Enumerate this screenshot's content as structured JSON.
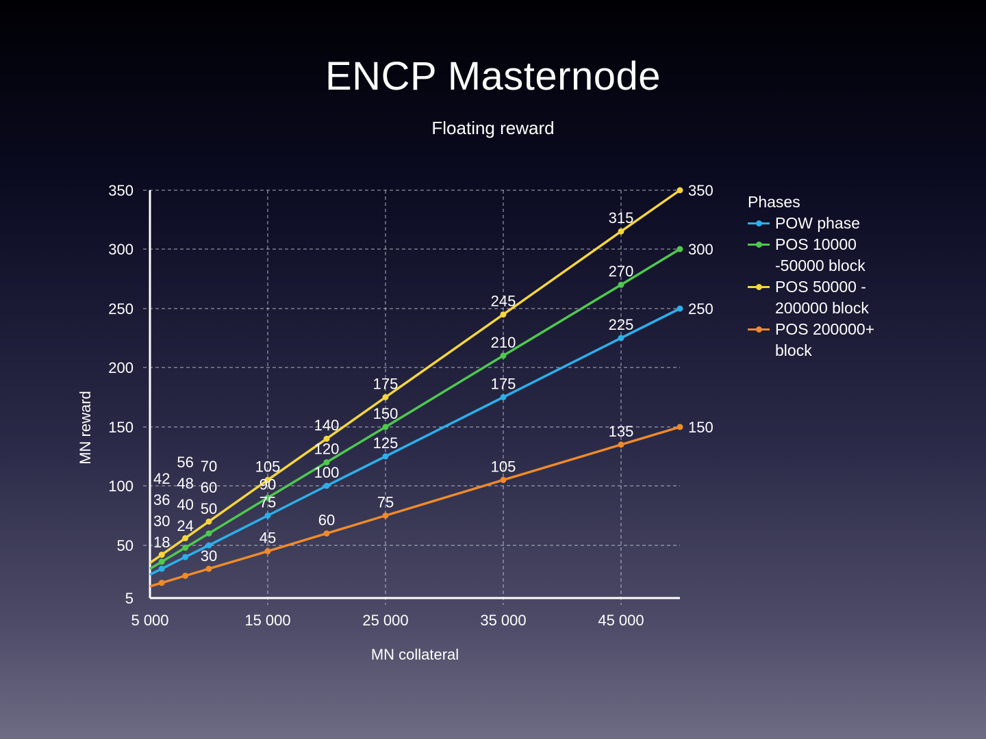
{
  "chart_data": {
    "type": "line",
    "title": "ENCP Masternode",
    "subtitle": "Floating reward",
    "xlabel": "MN collateral",
    "ylabel": "MN reward",
    "x": [
      5000,
      6000,
      8000,
      10000,
      15000,
      20000,
      25000,
      35000,
      45000,
      50000
    ],
    "xlim": [
      5000,
      50000
    ],
    "x_ticks": [
      5000,
      15000,
      25000,
      35000,
      45000
    ],
    "x_tick_labels": [
      "5 000",
      "15 000",
      "25 000",
      "35 000",
      "45 000"
    ],
    "ylim": [
      5,
      350
    ],
    "y_ticks": [
      5,
      50,
      100,
      150,
      200,
      250,
      300,
      350
    ],
    "y_tick_labels": [
      "5",
      "50",
      "100",
      "150",
      "200",
      "250",
      "300",
      "350"
    ],
    "grid": true,
    "legend_title": "Phases",
    "legend_position": "right",
    "series": [
      {
        "name": "POW phase",
        "color": "#2bb0ec",
        "values": [
          25,
          30,
          40,
          50,
          75,
          100,
          125,
          175,
          225,
          250
        ],
        "labels": [
          "",
          "",
          "",
          "",
          "75",
          "100",
          "125",
          "175",
          "225",
          "250"
        ]
      },
      {
        "name": "POS 10000 -50000 block",
        "legend_lines": [
          "POS 10000",
          "-50000 block"
        ],
        "color": "#4ec94e",
        "values": [
          30,
          36,
          48,
          60,
          90,
          120,
          150,
          210,
          270,
          300
        ],
        "labels": [
          "",
          "36",
          "48",
          "60",
          "90",
          "120",
          "150",
          "210",
          "270",
          "300"
        ]
      },
      {
        "name": "POS 50000 - 200000 block",
        "legend_lines": [
          "POS 50000 -",
          "200000 block"
        ],
        "color": "#f5d63d",
        "values": [
          35,
          42,
          56,
          70,
          105,
          140,
          175,
          245,
          315,
          350
        ],
        "labels": [
          "",
          "42",
          "56",
          "70",
          "105",
          "140",
          "175",
          "245",
          "315",
          "350"
        ]
      },
      {
        "name": "POS 200000+ block",
        "legend_lines": [
          "POS 200000+",
          "block"
        ],
        "color": "#f08a2a",
        "values": [
          15,
          18,
          24,
          30,
          45,
          60,
          75,
          105,
          135,
          150
        ],
        "labels": [
          "",
          "18",
          "24",
          "30",
          "45",
          "60",
          "75",
          "105",
          "135",
          "150"
        ]
      }
    ],
    "extra_labels": [
      "30",
      "40",
      "50"
    ]
  }
}
